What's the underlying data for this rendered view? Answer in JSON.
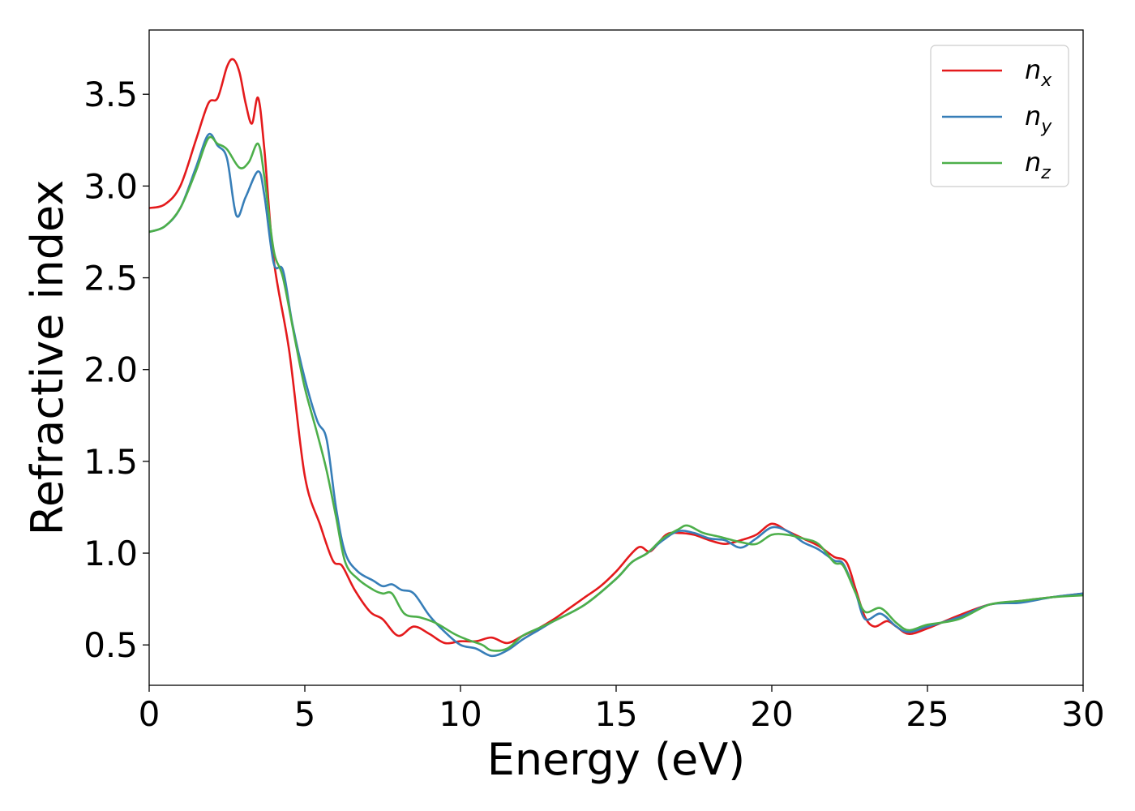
{
  "chart_data": {
    "type": "line",
    "xlabel": "Energy (eV)",
    "ylabel": "Refractive index",
    "xlim": [
      0,
      30
    ],
    "ylim": [
      0.28,
      3.85
    ],
    "xticks": [
      0,
      5,
      10,
      15,
      20,
      25,
      30
    ],
    "yticks": [
      0.5,
      1.0,
      1.5,
      2.0,
      2.5,
      3.0,
      3.5
    ],
    "xtick_labels": [
      "0",
      "5",
      "10",
      "15",
      "20",
      "25",
      "30"
    ],
    "ytick_labels": [
      "0.5",
      "1.0",
      "1.5",
      "2.0",
      "2.5",
      "3.0",
      "3.5"
    ],
    "grid": false,
    "legend_position": "top-right",
    "series": [
      {
        "name": "n",
        "subscript": "x",
        "color": "#e41a1c",
        "points": [
          [
            0,
            2.88
          ],
          [
            0.5,
            2.9
          ],
          [
            1.0,
            3.0
          ],
          [
            1.5,
            3.25
          ],
          [
            1.9,
            3.45
          ],
          [
            2.2,
            3.48
          ],
          [
            2.5,
            3.65
          ],
          [
            2.7,
            3.69
          ],
          [
            2.9,
            3.62
          ],
          [
            3.1,
            3.45
          ],
          [
            3.3,
            3.34
          ],
          [
            3.5,
            3.48
          ],
          [
            3.7,
            3.2
          ],
          [
            4.0,
            2.6
          ],
          [
            4.5,
            2.1
          ],
          [
            5.0,
            1.42
          ],
          [
            5.5,
            1.15
          ],
          [
            5.9,
            0.96
          ],
          [
            6.2,
            0.93
          ],
          [
            6.6,
            0.8
          ],
          [
            7.1,
            0.68
          ],
          [
            7.5,
            0.64
          ],
          [
            8.0,
            0.55
          ],
          [
            8.5,
            0.6
          ],
          [
            9.0,
            0.56
          ],
          [
            9.5,
            0.51
          ],
          [
            10.0,
            0.52
          ],
          [
            10.5,
            0.52
          ],
          [
            11.0,
            0.54
          ],
          [
            11.5,
            0.51
          ],
          [
            12.0,
            0.55
          ],
          [
            12.5,
            0.59
          ],
          [
            13.0,
            0.64
          ],
          [
            13.5,
            0.7
          ],
          [
            14.0,
            0.76
          ],
          [
            14.5,
            0.82
          ],
          [
            15.0,
            0.9
          ],
          [
            15.7,
            1.03
          ],
          [
            16.1,
            1.01
          ],
          [
            16.6,
            1.1
          ],
          [
            17.0,
            1.11
          ],
          [
            17.5,
            1.1
          ],
          [
            18.0,
            1.07
          ],
          [
            18.5,
            1.05
          ],
          [
            19.0,
            1.07
          ],
          [
            19.5,
            1.1
          ],
          [
            20.0,
            1.16
          ],
          [
            20.5,
            1.12
          ],
          [
            21.0,
            1.08
          ],
          [
            21.5,
            1.04
          ],
          [
            22.0,
            0.98
          ],
          [
            22.4,
            0.95
          ],
          [
            22.7,
            0.8
          ],
          [
            23.0,
            0.65
          ],
          [
            23.3,
            0.6
          ],
          [
            23.7,
            0.63
          ],
          [
            24.0,
            0.6
          ],
          [
            24.4,
            0.56
          ],
          [
            25.0,
            0.59
          ],
          [
            26.0,
            0.66
          ],
          [
            27.0,
            0.72
          ],
          [
            28.0,
            0.74
          ],
          [
            29.0,
            0.76
          ],
          [
            30.0,
            0.78
          ]
        ]
      },
      {
        "name": "n",
        "subscript": "y",
        "color": "#377eb8",
        "points": [
          [
            0,
            2.75
          ],
          [
            0.5,
            2.78
          ],
          [
            1.0,
            2.88
          ],
          [
            1.5,
            3.1
          ],
          [
            1.9,
            3.28
          ],
          [
            2.2,
            3.22
          ],
          [
            2.5,
            3.15
          ],
          [
            2.8,
            2.84
          ],
          [
            3.1,
            2.94
          ],
          [
            3.5,
            3.08
          ],
          [
            3.7,
            2.95
          ],
          [
            4.0,
            2.58
          ],
          [
            4.3,
            2.54
          ],
          [
            4.6,
            2.25
          ],
          [
            5.0,
            1.95
          ],
          [
            5.4,
            1.72
          ],
          [
            5.7,
            1.62
          ],
          [
            6.0,
            1.25
          ],
          [
            6.3,
            1.0
          ],
          [
            6.7,
            0.9
          ],
          [
            7.2,
            0.85
          ],
          [
            7.5,
            0.82
          ],
          [
            7.8,
            0.83
          ],
          [
            8.1,
            0.8
          ],
          [
            8.5,
            0.78
          ],
          [
            9.0,
            0.66
          ],
          [
            9.5,
            0.57
          ],
          [
            10.0,
            0.5
          ],
          [
            10.5,
            0.48
          ],
          [
            11.0,
            0.44
          ],
          [
            11.5,
            0.47
          ],
          [
            12.0,
            0.53
          ],
          [
            12.5,
            0.58
          ],
          [
            13.0,
            0.63
          ],
          [
            14.0,
            0.72
          ],
          [
            15.0,
            0.86
          ],
          [
            15.5,
            0.95
          ],
          [
            16.0,
            1.0
          ],
          [
            16.5,
            1.07
          ],
          [
            17.0,
            1.12
          ],
          [
            17.5,
            1.11
          ],
          [
            18.0,
            1.08
          ],
          [
            18.5,
            1.07
          ],
          [
            19.0,
            1.03
          ],
          [
            19.5,
            1.08
          ],
          [
            20.0,
            1.14
          ],
          [
            20.5,
            1.12
          ],
          [
            21.0,
            1.06
          ],
          [
            21.5,
            1.02
          ],
          [
            22.0,
            0.96
          ],
          [
            22.3,
            0.94
          ],
          [
            22.7,
            0.78
          ],
          [
            23.0,
            0.64
          ],
          [
            23.5,
            0.67
          ],
          [
            24.0,
            0.6
          ],
          [
            24.4,
            0.57
          ],
          [
            25.0,
            0.6
          ],
          [
            26.0,
            0.65
          ],
          [
            27.0,
            0.72
          ],
          [
            28.0,
            0.73
          ],
          [
            29.0,
            0.76
          ],
          [
            30.0,
            0.78
          ]
        ]
      },
      {
        "name": "n",
        "subscript": "z",
        "color": "#4daf4a",
        "points": [
          [
            0,
            2.75
          ],
          [
            0.5,
            2.78
          ],
          [
            1.0,
            2.88
          ],
          [
            1.5,
            3.08
          ],
          [
            1.9,
            3.26
          ],
          [
            2.2,
            3.23
          ],
          [
            2.5,
            3.2
          ],
          [
            2.9,
            3.1
          ],
          [
            3.2,
            3.13
          ],
          [
            3.5,
            3.23
          ],
          [
            3.7,
            3.05
          ],
          [
            4.0,
            2.65
          ],
          [
            4.3,
            2.5
          ],
          [
            4.7,
            2.15
          ],
          [
            5.0,
            1.9
          ],
          [
            5.4,
            1.65
          ],
          [
            5.7,
            1.45
          ],
          [
            6.0,
            1.2
          ],
          [
            6.3,
            0.95
          ],
          [
            6.7,
            0.86
          ],
          [
            7.2,
            0.8
          ],
          [
            7.5,
            0.78
          ],
          [
            7.8,
            0.78
          ],
          [
            8.2,
            0.67
          ],
          [
            8.7,
            0.65
          ],
          [
            9.2,
            0.62
          ],
          [
            9.8,
            0.56
          ],
          [
            10.2,
            0.53
          ],
          [
            10.7,
            0.5
          ],
          [
            11.0,
            0.47
          ],
          [
            11.5,
            0.48
          ],
          [
            12.0,
            0.55
          ],
          [
            12.5,
            0.59
          ],
          [
            13.0,
            0.63
          ],
          [
            14.0,
            0.72
          ],
          [
            15.0,
            0.86
          ],
          [
            15.5,
            0.95
          ],
          [
            16.0,
            1.0
          ],
          [
            16.5,
            1.08
          ],
          [
            17.0,
            1.13
          ],
          [
            17.3,
            1.15
          ],
          [
            17.8,
            1.11
          ],
          [
            18.3,
            1.09
          ],
          [
            19.0,
            1.06
          ],
          [
            19.5,
            1.05
          ],
          [
            20.0,
            1.1
          ],
          [
            20.5,
            1.1
          ],
          [
            21.0,
            1.08
          ],
          [
            21.5,
            1.05
          ],
          [
            22.0,
            0.95
          ],
          [
            22.3,
            0.93
          ],
          [
            22.7,
            0.78
          ],
          [
            23.0,
            0.68
          ],
          [
            23.5,
            0.7
          ],
          [
            24.0,
            0.62
          ],
          [
            24.4,
            0.58
          ],
          [
            25.0,
            0.61
          ],
          [
            26.0,
            0.64
          ],
          [
            27.0,
            0.72
          ],
          [
            28.0,
            0.74
          ],
          [
            29.0,
            0.76
          ],
          [
            30.0,
            0.77
          ]
        ]
      }
    ]
  }
}
